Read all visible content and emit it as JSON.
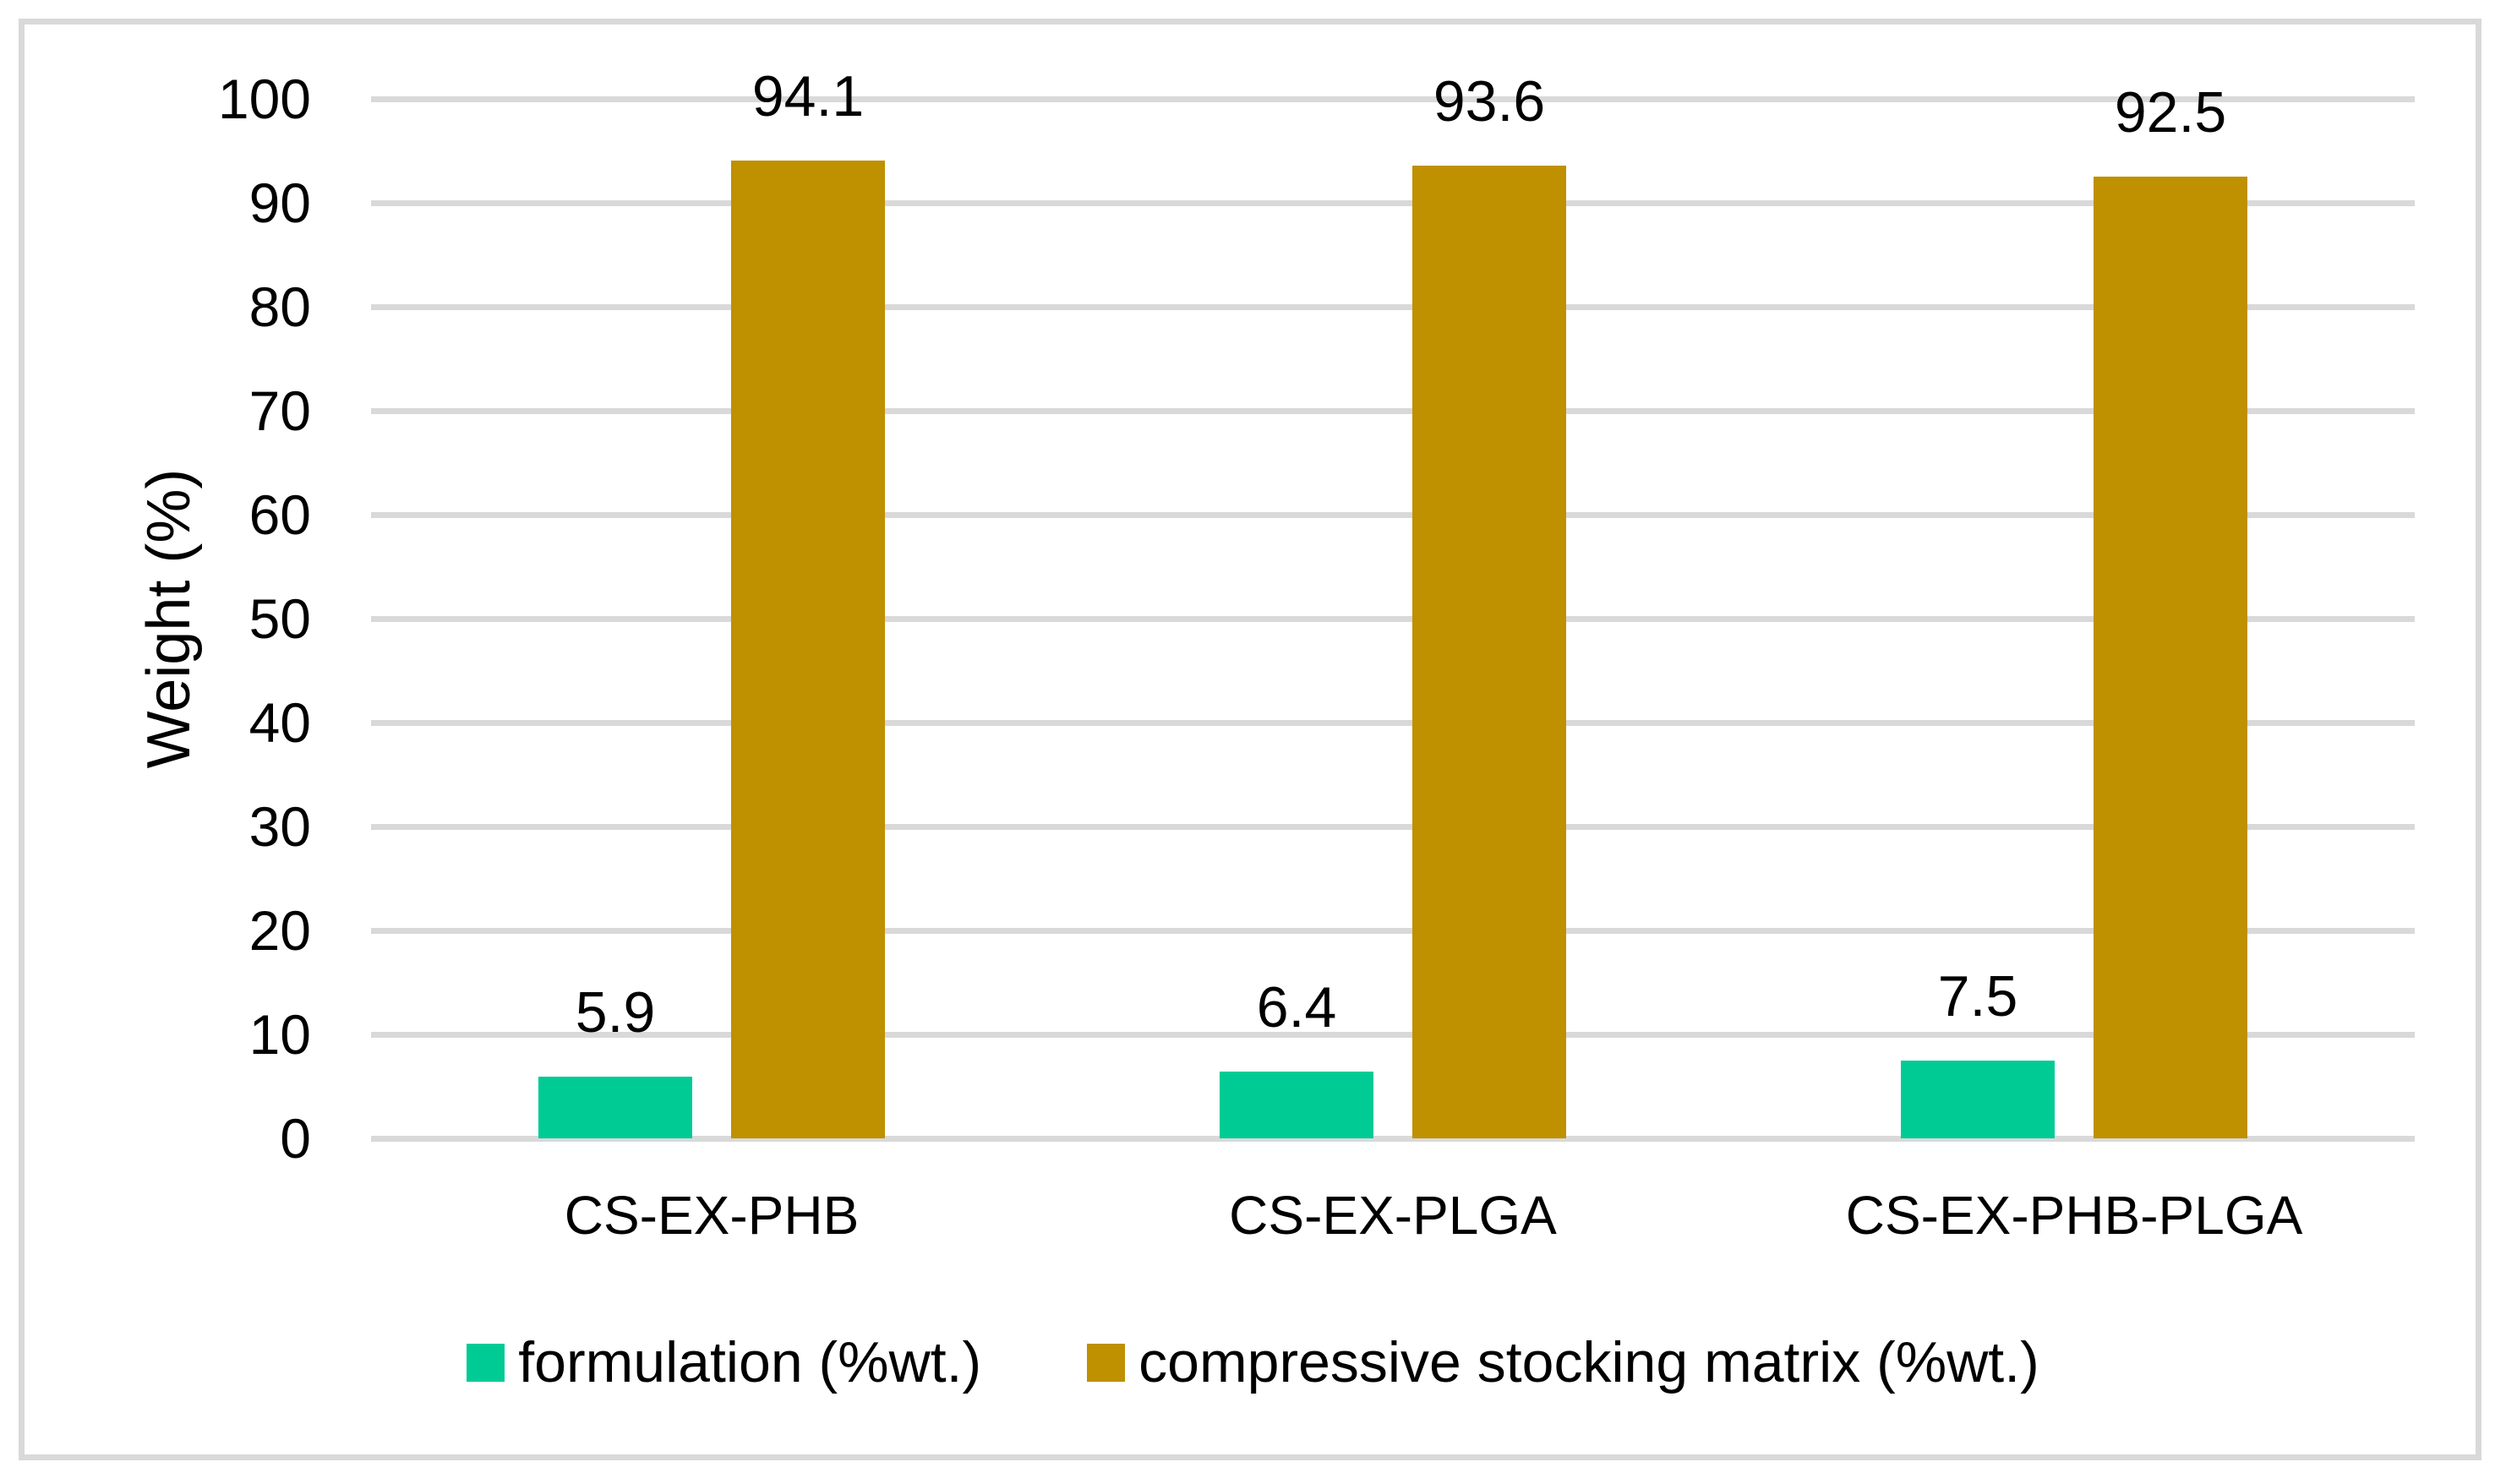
{
  "figure": {
    "background_color": "#ffffff",
    "border_color": "#d9d9d9",
    "gridline_color": "#d9d9d9",
    "text_color": "#000000"
  },
  "chart_data": {
    "type": "bar",
    "title": "",
    "categories": [
      "CS-EX-PHB",
      "CS-EX-PLGA",
      "CS-EX-PHB-PLGA"
    ],
    "series": [
      {
        "name": "formulation (%wt.)",
        "values": [
          5.9,
          6.4,
          7.5
        ],
        "color": "#00CB95"
      },
      {
        "name": "compressive stocking matrix (%wt.)",
        "values": [
          94.1,
          93.6,
          92.5
        ],
        "color": "#BF9000"
      }
    ],
    "data_labels": [
      "5.9",
      "6.4",
      "7.5",
      "94.1",
      "93.6",
      "92.5"
    ],
    "xlabel": "",
    "ylabel": "Weight (%)",
    "ylim": [
      0,
      100
    ],
    "ytick_step": 10,
    "ytick_labels": [
      "0",
      "10",
      "20",
      "30",
      "40",
      "50",
      "60",
      "70",
      "80",
      "90",
      "100"
    ],
    "grid": true,
    "legend_position": "bottom"
  }
}
